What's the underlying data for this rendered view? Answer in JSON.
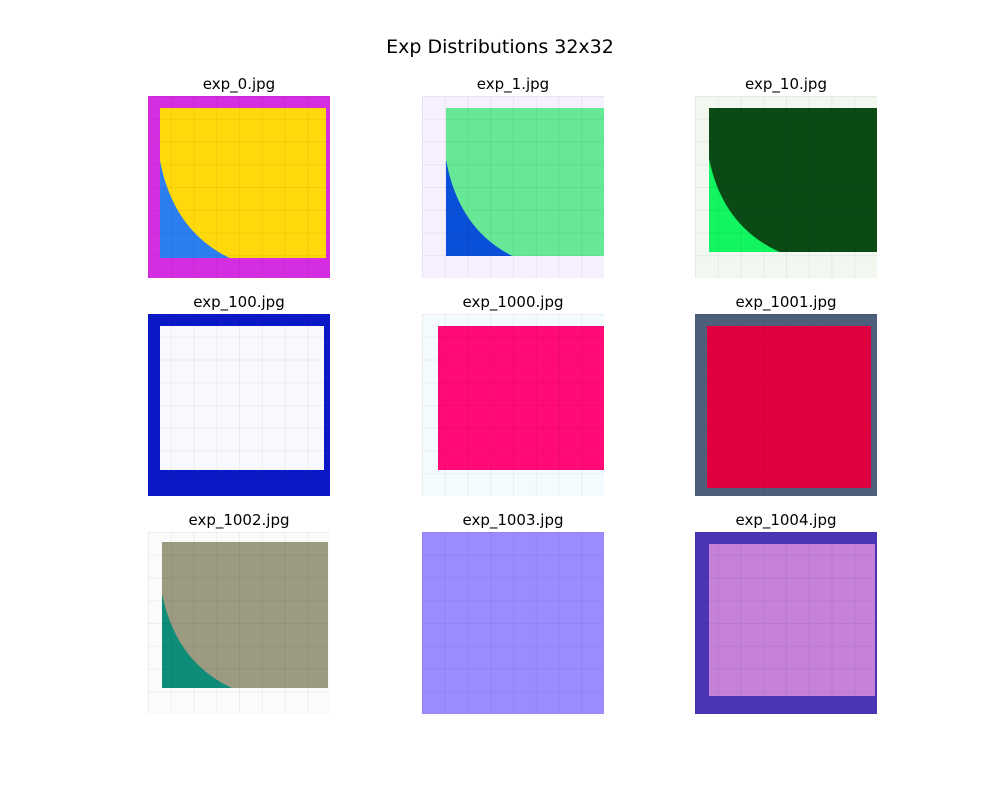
{
  "title": "Exp Distributions 32x32",
  "images": [
    {
      "label": "exp_0.jpg",
      "border": "#d42ee0",
      "fill": "#ffd90a",
      "accent": "#2b7ff0",
      "icon": "quarter-circle-corner-image"
    },
    {
      "label": "exp_1.jpg",
      "border": "#f6f0ff",
      "fill": "#66e896",
      "accent": "#0a4fd8",
      "icon": "quarter-circle-corner-image"
    },
    {
      "label": "exp_10.jpg",
      "border": "#f2f7f0",
      "fill": "#0b4a14",
      "accent": "#12f560",
      "icon": "quarter-circle-corner-image"
    },
    {
      "label": "exp_100.jpg",
      "border": "#0a18c6",
      "fill": "#f8f9ff",
      "accent": "#0a18c6",
      "icon": "framed-square-image"
    },
    {
      "label": "exp_1000.jpg",
      "border": "#f4fbff",
      "fill": "#ff0a76",
      "accent": "#ff6fb0",
      "icon": "framed-square-image"
    },
    {
      "label": "exp_1001.jpg",
      "border": "#4e5f7c",
      "fill": "#e1003f",
      "accent": "#14857a",
      "icon": "framed-square-image"
    },
    {
      "label": "exp_1002.jpg",
      "border": "#fbfbfb",
      "fill": "#9c9a80",
      "accent": "#0e8d78",
      "icon": "quarter-circle-corner-image"
    },
    {
      "label": "exp_1003.jpg",
      "border": "#b3a58d",
      "fill": "#9a8bff",
      "accent": "#b3a58d",
      "icon": "framed-square-image"
    },
    {
      "label": "exp_1004.jpg",
      "border": "#4a36b4",
      "fill": "#c582d8",
      "accent": "#4a36b4",
      "icon": "framed-square-image"
    }
  ]
}
